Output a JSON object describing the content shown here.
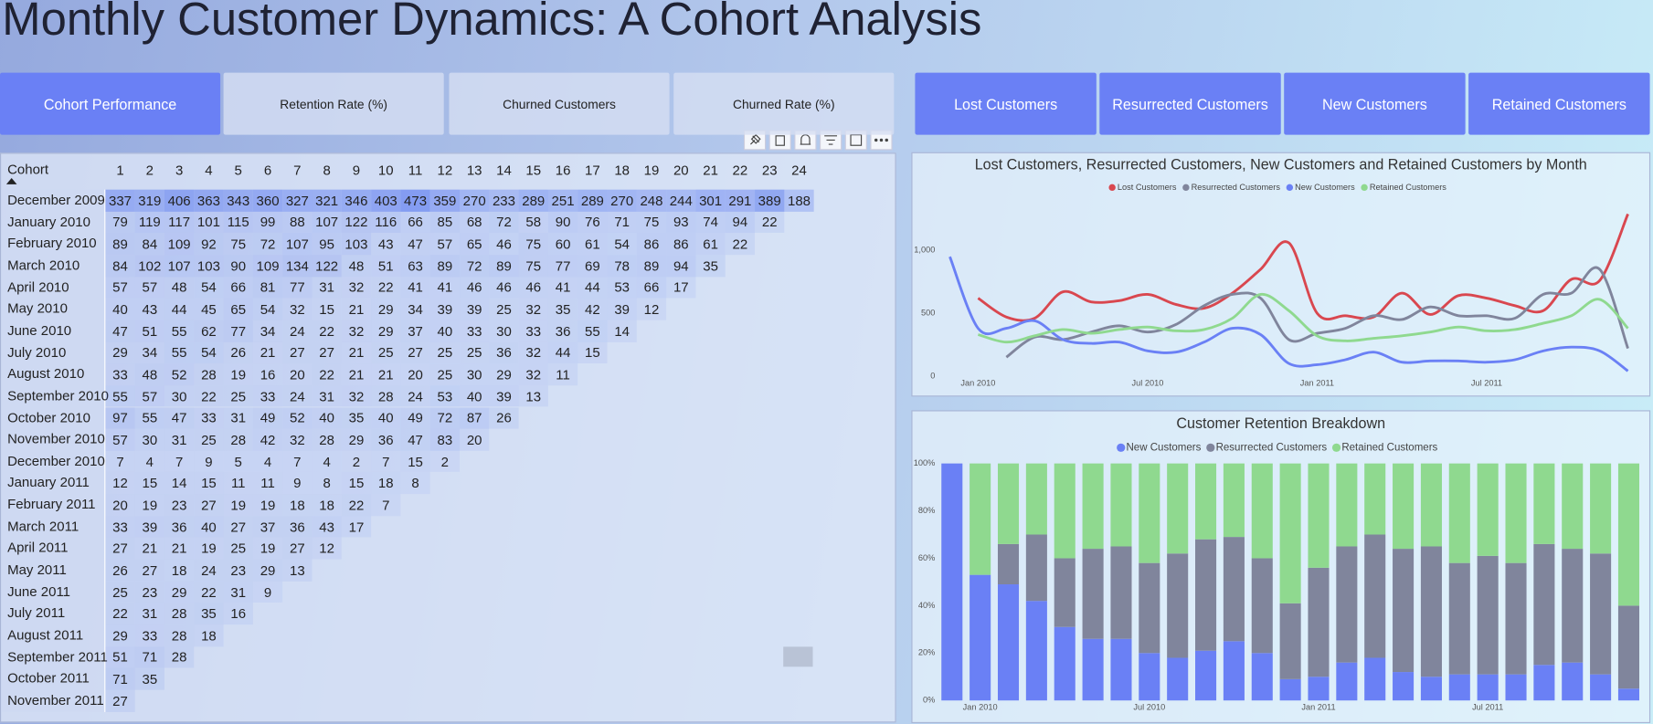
{
  "title": "Monthly Customer Dynamics: A Cohort Analysis",
  "tabs": [
    {
      "label": "Cohort Performance",
      "active": true
    },
    {
      "label": "Retention Rate (%)",
      "active": false
    },
    {
      "label": "Churned Customers",
      "active": false
    },
    {
      "label": "Churned Rate (%)",
      "active": false
    }
  ],
  "nav_buttons": [
    "Lost Customers",
    "Resurrected Customers",
    "New Customers",
    "Retained Customers"
  ],
  "table": {
    "header": {
      "cohort": "Cohort",
      "periods": [
        1,
        2,
        3,
        4,
        5,
        6,
        7,
        8,
        9,
        10,
        11,
        12,
        13,
        14,
        15,
        16,
        17,
        18,
        19,
        20,
        21,
        22,
        23,
        24
      ]
    },
    "rows": [
      {
        "cohort": "December 2009",
        "values": [
          337,
          319,
          406,
          363,
          343,
          360,
          327,
          321,
          346,
          403,
          473,
          359,
          270,
          233,
          289,
          251,
          289,
          270,
          248,
          244,
          301,
          291,
          389,
          188
        ]
      },
      {
        "cohort": "January 2010",
        "values": [
          79,
          119,
          117,
          101,
          115,
          99,
          88,
          107,
          122,
          116,
          66,
          85,
          68,
          72,
          58,
          90,
          76,
          71,
          75,
          93,
          74,
          94,
          22
        ]
      },
      {
        "cohort": "February 2010",
        "values": [
          89,
          84,
          109,
          92,
          75,
          72,
          107,
          95,
          103,
          43,
          47,
          57,
          65,
          46,
          75,
          60,
          61,
          54,
          86,
          86,
          61,
          22
        ]
      },
      {
        "cohort": "March 2010",
        "values": [
          84,
          102,
          107,
          103,
          90,
          109,
          134,
          122,
          48,
          51,
          63,
          89,
          72,
          89,
          75,
          77,
          69,
          78,
          89,
          94,
          35
        ]
      },
      {
        "cohort": "April 2010",
        "values": [
          57,
          57,
          48,
          54,
          66,
          81,
          77,
          31,
          32,
          22,
          41,
          41,
          46,
          46,
          46,
          41,
          44,
          53,
          66,
          17
        ]
      },
      {
        "cohort": "May 2010",
        "values": [
          40,
          43,
          44,
          45,
          65,
          54,
          32,
          15,
          21,
          29,
          34,
          39,
          39,
          25,
          32,
          35,
          42,
          39,
          12
        ]
      },
      {
        "cohort": "June 2010",
        "values": [
          47,
          51,
          55,
          62,
          77,
          34,
          24,
          22,
          32,
          29,
          37,
          40,
          33,
          30,
          33,
          36,
          55,
          14
        ]
      },
      {
        "cohort": "July 2010",
        "values": [
          29,
          34,
          55,
          54,
          26,
          21,
          27,
          27,
          21,
          25,
          27,
          25,
          25,
          36,
          32,
          44,
          15
        ]
      },
      {
        "cohort": "August 2010",
        "values": [
          33,
          48,
          52,
          28,
          19,
          16,
          20,
          22,
          21,
          21,
          20,
          25,
          30,
          29,
          32,
          11
        ]
      },
      {
        "cohort": "September 2010",
        "values": [
          55,
          57,
          30,
          22,
          25,
          33,
          24,
          31,
          32,
          28,
          24,
          53,
          40,
          39,
          13
        ]
      },
      {
        "cohort": "October 2010",
        "values": [
          97,
          55,
          47,
          33,
          31,
          49,
          52,
          40,
          35,
          40,
          49,
          72,
          87,
          26
        ]
      },
      {
        "cohort": "November 2010",
        "values": [
          57,
          30,
          31,
          25,
          28,
          42,
          32,
          28,
          29,
          36,
          47,
          83,
          20
        ]
      },
      {
        "cohort": "December 2010",
        "values": [
          7,
          4,
          7,
          9,
          5,
          4,
          7,
          4,
          2,
          7,
          15,
          2
        ]
      },
      {
        "cohort": "January 2011",
        "values": [
          12,
          15,
          14,
          15,
          11,
          11,
          9,
          8,
          15,
          18,
          8
        ]
      },
      {
        "cohort": "February 2011",
        "values": [
          20,
          19,
          23,
          27,
          19,
          19,
          18,
          18,
          22,
          7
        ]
      },
      {
        "cohort": "March 2011",
        "values": [
          33,
          39,
          36,
          40,
          27,
          37,
          36,
          43,
          17
        ]
      },
      {
        "cohort": "April 2011",
        "values": [
          27,
          21,
          21,
          19,
          25,
          19,
          27,
          12
        ]
      },
      {
        "cohort": "May 2011",
        "values": [
          26,
          27,
          18,
          24,
          23,
          29,
          13
        ]
      },
      {
        "cohort": "June 2011",
        "values": [
          25,
          23,
          29,
          22,
          31,
          9
        ]
      },
      {
        "cohort": "July 2011",
        "values": [
          22,
          31,
          28,
          35,
          16
        ]
      },
      {
        "cohort": "August 2011",
        "values": [
          29,
          33,
          28,
          18
        ]
      },
      {
        "cohort": "September 2011",
        "values": [
          51,
          71,
          28
        ]
      },
      {
        "cohort": "October 2011",
        "values": [
          71,
          35
        ]
      },
      {
        "cohort": "November 2011",
        "values": [
          27
        ]
      }
    ]
  },
  "chart_data": [
    {
      "type": "line",
      "title": "Lost Customers, Resurrected Customers, New Customers and Retained Customers by Month",
      "x": [
        "2009-12",
        "2010-01",
        "2010-02",
        "2010-03",
        "2010-04",
        "2010-05",
        "2010-06",
        "2010-07",
        "2010-08",
        "2010-09",
        "2010-10",
        "2010-11",
        "2010-12",
        "2011-01",
        "2011-02",
        "2011-03",
        "2011-04",
        "2011-05",
        "2011-06",
        "2011-07",
        "2011-08",
        "2011-09",
        "2011-10",
        "2011-11",
        "2011-12"
      ],
      "xticks": [
        {
          "value": "2010-01",
          "label": "Jan 2010"
        },
        {
          "value": "2010-07",
          "label": "Jul 2010"
        },
        {
          "value": "2011-01",
          "label": "Jan 2011"
        },
        {
          "value": "2011-07",
          "label": "Jul 2011"
        }
      ],
      "ylim": [
        0,
        1350
      ],
      "yticks": [
        0,
        500,
        {
          "value": 1000,
          "label": "1,000"
        }
      ],
      "grid": false,
      "smooth": true,
      "series": [
        {
          "name": "Lost Customers",
          "color": "#d9474f",
          "values": [
            null,
            620,
            470,
            460,
            670,
            590,
            600,
            650,
            570,
            540,
            660,
            850,
            1060,
            500,
            480,
            470,
            660,
            490,
            640,
            620,
            560,
            520,
            770,
            760,
            1290
          ]
        },
        {
          "name": "Resurrected Customers",
          "color": "#80859c",
          "values": [
            null,
            null,
            150,
            310,
            290,
            350,
            400,
            350,
            410,
            560,
            650,
            620,
            290,
            340,
            380,
            480,
            450,
            550,
            480,
            480,
            460,
            650,
            660,
            850,
            220
          ]
        },
        {
          "name": "New Customers",
          "color": "#6a80f5",
          "values": [
            950,
            380,
            380,
            440,
            290,
            260,
            270,
            200,
            190,
            270,
            380,
            330,
            100,
            90,
            130,
            190,
            110,
            120,
            120,
            110,
            130,
            200,
            230,
            200,
            40
          ]
        },
        {
          "name": "Retained Customers",
          "color": "#8fd98f",
          "values": [
            null,
            330,
            270,
            320,
            370,
            340,
            370,
            390,
            360,
            370,
            460,
            650,
            520,
            320,
            280,
            300,
            320,
            350,
            390,
            360,
            370,
            420,
            480,
            610,
            380
          ]
        }
      ]
    },
    {
      "type": "bar",
      "stacked": "percent",
      "title": "Customer Retention Breakdown",
      "x": [
        "2009-12",
        "2010-01",
        "2010-02",
        "2010-03",
        "2010-04",
        "2010-05",
        "2010-06",
        "2010-07",
        "2010-08",
        "2010-09",
        "2010-10",
        "2010-11",
        "2010-12",
        "2011-01",
        "2011-02",
        "2011-03",
        "2011-04",
        "2011-05",
        "2011-06",
        "2011-07",
        "2011-08",
        "2011-09",
        "2011-10",
        "2011-11",
        "2011-12"
      ],
      "xticks": [
        {
          "value": "2010-01",
          "label": "Jan 2010"
        },
        {
          "value": "2010-07",
          "label": "Jul 2010"
        },
        {
          "value": "2011-01",
          "label": "Jan 2011"
        },
        {
          "value": "2011-07",
          "label": "Jul 2011"
        }
      ],
      "ylim": [
        0,
        100
      ],
      "yticks": [
        {
          "value": 0,
          "label": "0%"
        },
        {
          "value": 20,
          "label": "20%"
        },
        {
          "value": 40,
          "label": "40%"
        },
        {
          "value": 60,
          "label": "60%"
        },
        {
          "value": 80,
          "label": "80%"
        },
        {
          "value": 100,
          "label": "100%"
        }
      ],
      "grid": false,
      "series": [
        {
          "name": "New Customers",
          "color": "#6a80f5",
          "values": [
            100,
            53,
            49,
            42,
            31,
            26,
            26,
            20,
            18,
            21,
            25,
            20,
            9,
            10,
            16,
            18,
            12,
            10,
            11,
            11,
            11,
            15,
            16,
            11,
            5
          ]
        },
        {
          "name": "Resurrected Customers",
          "color": "#80859c",
          "values": [
            0,
            0,
            17,
            28,
            29,
            38,
            39,
            38,
            44,
            47,
            44,
            40,
            32,
            46,
            49,
            52,
            52,
            55,
            47,
            50,
            47,
            51,
            48,
            51,
            35
          ]
        },
        {
          "name": "Retained Customers",
          "color": "#8fd98f",
          "values": [
            0,
            47,
            34,
            30,
            40,
            36,
            35,
            42,
            38,
            32,
            31,
            40,
            59,
            44,
            35,
            30,
            36,
            35,
            42,
            39,
            42,
            34,
            36,
            38,
            60
          ]
        }
      ]
    }
  ]
}
